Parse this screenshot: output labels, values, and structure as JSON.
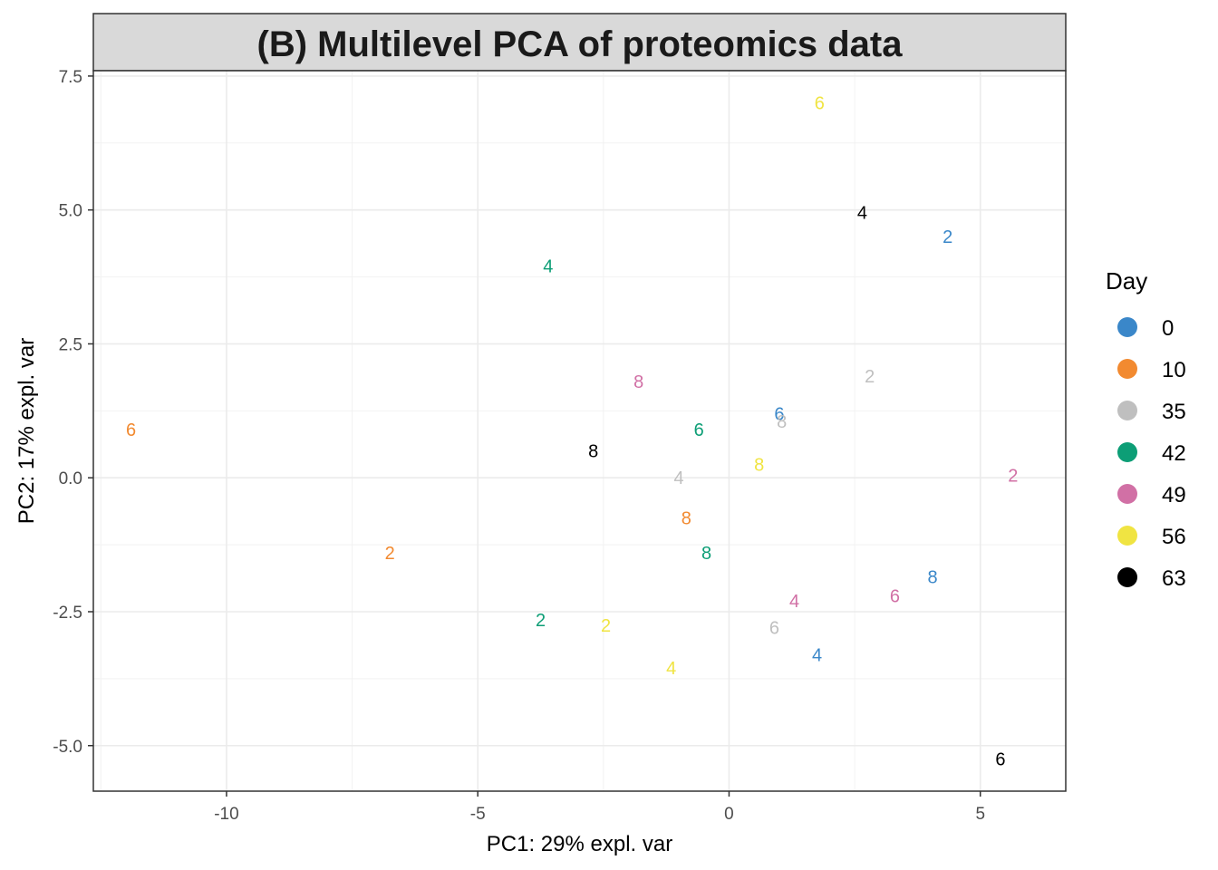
{
  "chart_data": {
    "type": "scatter",
    "title": "(B) Multilevel PCA of proteomics data",
    "xlabel": "PC1: 29% expl. var",
    "ylabel": "PC2: 17% expl. var",
    "xlim": [
      -12.65,
      6.7
    ],
    "ylim": [
      -5.85,
      7.6
    ],
    "x_ticks": [
      -10,
      -5,
      0,
      5
    ],
    "x_tick_labels": [
      "-10",
      "-5",
      "0",
      "5"
    ],
    "y_ticks": [
      -5.0,
      -2.5,
      0.0,
      2.5,
      5.0,
      7.5
    ],
    "y_tick_labels": [
      "-5.0",
      "-2.5",
      "0.0",
      "2.5",
      "5.0",
      "7.5"
    ],
    "grid": true,
    "legend": {
      "title": "Day",
      "position": "right",
      "items": [
        {
          "label": "0",
          "color": "#3a87c9"
        },
        {
          "label": "10",
          "color": "#f28a30"
        },
        {
          "label": "35",
          "color": "#bfbfbf"
        },
        {
          "label": "42",
          "color": "#0d9e76"
        },
        {
          "label": "49",
          "color": "#d170a5"
        },
        {
          "label": "56",
          "color": "#f0e442"
        },
        {
          "label": "63",
          "color": "#000000"
        }
      ]
    },
    "points": [
      {
        "label": "6",
        "day": "56",
        "x": 1.8,
        "y": 7.0
      },
      {
        "label": "4",
        "day": "63",
        "x": 2.65,
        "y": 4.95
      },
      {
        "label": "2",
        "day": "0",
        "x": 4.35,
        "y": 4.5
      },
      {
        "label": "4",
        "day": "42",
        "x": -3.6,
        "y": 3.95
      },
      {
        "label": "2",
        "day": "35",
        "x": 2.8,
        "y": 1.9
      },
      {
        "label": "8",
        "day": "49",
        "x": -1.8,
        "y": 1.8
      },
      {
        "label": "6",
        "day": "0",
        "x": 1.0,
        "y": 1.2
      },
      {
        "label": "8",
        "day": "35",
        "x": 1.05,
        "y": 1.05
      },
      {
        "label": "6",
        "day": "10",
        "x": -11.9,
        "y": 0.9
      },
      {
        "label": "6",
        "day": "42",
        "x": -0.6,
        "y": 0.9
      },
      {
        "label": "8",
        "day": "63",
        "x": -2.7,
        "y": 0.5
      },
      {
        "label": "8",
        "day": "56",
        "x": 0.6,
        "y": 0.25
      },
      {
        "label": "2",
        "day": "49",
        "x": 5.65,
        "y": 0.05
      },
      {
        "label": "4",
        "day": "35",
        "x": -1.0,
        "y": 0.0
      },
      {
        "label": "8",
        "day": "10",
        "x": -0.85,
        "y": -0.75
      },
      {
        "label": "2",
        "day": "10",
        "x": -6.75,
        "y": -1.4
      },
      {
        "label": "8",
        "day": "42",
        "x": -0.45,
        "y": -1.4
      },
      {
        "label": "8",
        "day": "0",
        "x": 4.05,
        "y": -1.85
      },
      {
        "label": "6",
        "day": "49",
        "x": 3.3,
        "y": -2.2
      },
      {
        "label": "4",
        "day": "49",
        "x": 1.3,
        "y": -2.3
      },
      {
        "label": "2",
        "day": "42",
        "x": -3.75,
        "y": -2.65
      },
      {
        "label": "2",
        "day": "56",
        "x": -2.45,
        "y": -2.75
      },
      {
        "label": "6",
        "day": "35",
        "x": 0.9,
        "y": -2.8
      },
      {
        "label": "4",
        "day": "0",
        "x": 1.75,
        "y": -3.3
      },
      {
        "label": "4",
        "day": "56",
        "x": -1.15,
        "y": -3.55
      },
      {
        "label": "6",
        "day": "63",
        "x": 5.4,
        "y": -5.25
      }
    ]
  }
}
